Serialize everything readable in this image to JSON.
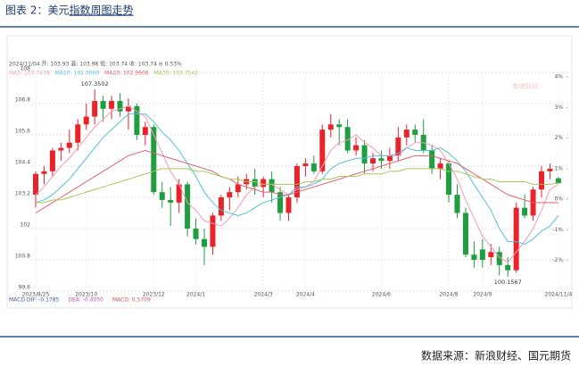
{
  "page": {
    "title_prefix": "图表 2：美元",
    "title_link": "指数周图走势",
    "source": "数据来源：新浪财经、国元期货"
  },
  "chart_data": {
    "type": "candlestick",
    "info": "2024/11/04 开: 103.93 高: 103.98 低: 103.74 收: 103.74 ⊖ 0.53%",
    "watermark": "新浪财经",
    "macd_labels": [
      "MACD  DIF: -0.1785",
      "DEA: -0.4050",
      "MACD: 0.5709"
    ],
    "high_label": 107.3502,
    "low_label": 100.1567,
    "up_color": "#e8232a",
    "down_color": "#1e9e3e",
    "grid": true,
    "ylim": [
      99.6,
      108
    ],
    "yticks": [
      108,
      106.8,
      105.6,
      104.4,
      103.2,
      102,
      100.8,
      99.6
    ],
    "y2lim": [
      -3,
      4.15
    ],
    "y2ticks": [
      {
        "value": 4,
        "label": "4%"
      },
      {
        "value": 3,
        "label": "3%"
      },
      {
        "value": 2,
        "label": "2%"
      },
      {
        "value": 1,
        "label": "1%"
      },
      {
        "value": 0,
        "label": "0%"
      },
      {
        "value": -1,
        "label": "-1%"
      },
      {
        "value": -2,
        "label": "-2%"
      }
    ],
    "categories": [
      "2023/8/25",
      null,
      null,
      null,
      null,
      null,
      "2023/10",
      null,
      null,
      null,
      null,
      null,
      null,
      null,
      "2023/12",
      null,
      null,
      null,
      null,
      "2024/1",
      null,
      null,
      null,
      null,
      null,
      null,
      null,
      "2024/3",
      null,
      null,
      null,
      null,
      "2024/4",
      null,
      null,
      null,
      null,
      null,
      null,
      null,
      null,
      "2024/6",
      null,
      null,
      null,
      null,
      null,
      null,
      null,
      "2024/8",
      null,
      null,
      null,
      "2024/9",
      null,
      null,
      null,
      null,
      null,
      null,
      null,
      null,
      "2024/11/4"
    ],
    "open": [
      103.3,
      104.1,
      104.2,
      105.0,
      105.1,
      105.3,
      106.0,
      106.3,
      106.9,
      106.6,
      106.9,
      106.5,
      106.7,
      105.6,
      105.9,
      103.4,
      103.1,
      103.0,
      103.7,
      102.0,
      101.6,
      101.3,
      102.5,
      103.2,
      103.4,
      103.7,
      103.9,
      103.6,
      103.9,
      103.4,
      102.6,
      103.2,
      104.4,
      104.5,
      104.2,
      105.8,
      106.0,
      105.9,
      105.0,
      105.2,
      104.5,
      104.7,
      104.6,
      104.8,
      105.5,
      105.8,
      105.6,
      105.0,
      104.3,
      104.5,
      103.3,
      102.6,
      101.0,
      101.2,
      100.9,
      101.1,
      100.6,
      100.4,
      102.8,
      102.5,
      103.5,
      104.2,
      103.93
    ],
    "high": [
      104.2,
      104.4,
      105.1,
      105.3,
      105.8,
      106.2,
      106.8,
      107.3502,
      107.1,
      107.1,
      107.2,
      107.0,
      106.8,
      106.1,
      106.0,
      103.8,
      103.6,
      103.9,
      103.8,
      102.4,
      102.0,
      102.6,
      103.3,
      103.6,
      104.0,
      104.1,
      104.3,
      104.0,
      104.2,
      103.6,
      103.3,
      104.5,
      104.7,
      104.8,
      106.0,
      106.4,
      106.2,
      106.2,
      105.5,
      105.4,
      104.9,
      105.0,
      105.1,
      105.9,
      106.0,
      106.0,
      106.2,
      105.2,
      104.7,
      104.6,
      103.7,
      102.8,
      101.5,
      101.6,
      101.4,
      101.3,
      100.9,
      103.0,
      103.3,
      103.6,
      104.4,
      104.5,
      103.98
    ],
    "low": [
      102.8,
      103.7,
      104.0,
      104.6,
      104.9,
      105.0,
      105.8,
      106.0,
      106.1,
      106.2,
      106.3,
      105.8,
      105.4,
      105.2,
      103.3,
      102.8,
      102.1,
      102.6,
      101.7,
      101.4,
      100.6,
      101.0,
      102.3,
      102.7,
      103.2,
      103.5,
      103.3,
      103.2,
      103.0,
      102.3,
      102.3,
      103.0,
      104.0,
      104.1,
      104.1,
      105.5,
      105.2,
      104.9,
      104.8,
      104.1,
      104.2,
      104.3,
      104.3,
      104.6,
      105.2,
      105.3,
      104.9,
      104.1,
      103.9,
      103.0,
      102.4,
      100.9,
      100.5,
      100.5,
      100.6,
      100.2,
      100.1567,
      100.3,
      102.4,
      102.3,
      103.2,
      103.9,
      103.74
    ],
    "close": [
      104.1,
      104.2,
      105.0,
      105.1,
      105.3,
      106.0,
      106.3,
      106.9,
      106.6,
      106.9,
      106.5,
      106.7,
      105.6,
      105.9,
      103.4,
      103.1,
      103.0,
      103.7,
      102.0,
      101.6,
      101.3,
      102.5,
      103.2,
      103.4,
      103.7,
      103.9,
      103.6,
      103.9,
      103.4,
      102.6,
      103.2,
      104.4,
      104.5,
      104.2,
      105.8,
      106.0,
      105.9,
      105.0,
      105.2,
      104.5,
      104.7,
      104.6,
      104.8,
      105.5,
      105.8,
      105.6,
      105.0,
      104.3,
      104.5,
      103.3,
      102.6,
      101.0,
      100.8,
      100.8,
      101.1,
      100.6,
      100.4,
      102.8,
      102.5,
      103.5,
      104.2,
      104.3,
      103.74
    ],
    "series": [
      {
        "name": "MA5: 103.7478",
        "color": "#f19cb7",
        "values": [
          103.3,
          103.6,
          104.0,
          104.4,
          104.7,
          105.1,
          105.5,
          105.9,
          106.2,
          106.5,
          106.6,
          106.7,
          106.5,
          106.3,
          105.6,
          104.9,
          104.2,
          103.7,
          103.0,
          102.7,
          102.3,
          102.2,
          102.1,
          102.4,
          102.8,
          103.3,
          103.6,
          103.7,
          103.7,
          103.5,
          103.3,
          103.5,
          103.6,
          103.8,
          104.4,
          105.0,
          105.3,
          105.4,
          105.6,
          105.3,
          105.1,
          104.8,
          104.8,
          104.8,
          105.1,
          105.3,
          105.3,
          105.2,
          105.0,
          104.5,
          103.9,
          103.1,
          102.4,
          101.7,
          101.3,
          100.9,
          100.7,
          101.1,
          101.5,
          102.0,
          102.7,
          103.5,
          103.7
        ]
      },
      {
        "name": "MA10: 102.5060",
        "color": "#56bfe0",
        "values": [
          103.0,
          103.1,
          103.3,
          103.6,
          103.9,
          104.3,
          104.7,
          105.1,
          105.5,
          105.8,
          106.1,
          106.4,
          106.4,
          106.4,
          106.1,
          105.7,
          105.4,
          105.0,
          104.5,
          104.0,
          103.4,
          103.0,
          102.7,
          102.6,
          102.5,
          102.6,
          102.8,
          103.0,
          103.1,
          103.2,
          103.3,
          103.6,
          103.6,
          103.7,
          103.9,
          104.3,
          104.5,
          104.6,
          104.7,
          104.7,
          104.8,
          104.8,
          104.8,
          104.9,
          105.1,
          105.0,
          105.0,
          105.0,
          105.1,
          104.9,
          104.6,
          104.2,
          103.7,
          103.2,
          102.7,
          102.0,
          101.5,
          101.5,
          101.4,
          101.6,
          101.9,
          102.1,
          102.5
        ]
      },
      {
        "name": "MA20: 102.9906",
        "color": "#e0606e",
        "values": [
          102.6,
          102.8,
          103.0,
          103.2,
          103.4,
          103.6,
          103.8,
          104.0,
          104.2,
          104.4,
          104.6,
          104.8,
          104.9,
          105.0,
          104.9,
          104.8,
          104.7,
          104.6,
          104.5,
          104.4,
          104.3,
          104.2,
          104.0,
          103.9,
          103.7,
          103.6,
          103.5,
          103.4,
          103.4,
          103.3,
          103.3,
          103.4,
          103.5,
          103.6,
          103.7,
          103.8,
          103.9,
          104.0,
          104.1,
          104.2,
          104.3,
          104.4,
          104.5,
          104.6,
          104.7,
          104.8,
          104.8,
          104.8,
          104.7,
          104.6,
          104.5,
          104.3,
          104.1,
          103.9,
          103.7,
          103.5,
          103.3,
          103.2,
          103.1,
          103.0,
          103.0,
          103.0,
          102.99
        ]
      },
      {
        "name": "MA30: 103.7542",
        "color": "#a8c65a",
        "values": [
          103.0,
          103.0,
          103.1,
          103.1,
          103.2,
          103.3,
          103.4,
          103.5,
          103.6,
          103.7,
          103.8,
          103.9,
          104.0,
          104.1,
          104.2,
          104.3,
          104.3,
          104.3,
          104.3,
          104.2,
          104.2,
          104.1,
          104.0,
          103.9,
          103.9,
          103.8,
          103.8,
          103.7,
          103.7,
          103.7,
          103.7,
          103.7,
          103.8,
          103.8,
          103.9,
          103.9,
          104.0,
          104.0,
          104.0,
          104.1,
          104.1,
          104.1,
          104.2,
          104.2,
          104.3,
          104.3,
          104.3,
          104.3,
          104.3,
          104.2,
          104.2,
          104.1,
          104.0,
          103.9,
          103.9,
          103.8,
          103.8,
          103.8,
          103.8,
          103.7,
          103.7,
          103.7,
          103.75
        ]
      }
    ]
  }
}
